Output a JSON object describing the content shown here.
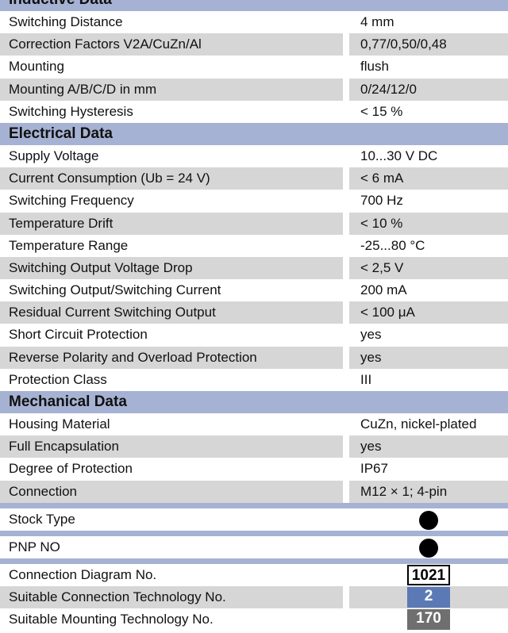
{
  "inductive": {
    "title": "Inductive Data",
    "rows": [
      {
        "label": "Switching Distance",
        "value": "4 mm"
      },
      {
        "label": "Correction Factors V2A/CuZn/Al",
        "value": "0,77/0,50/0,48"
      },
      {
        "label": "Mounting",
        "value": "flush"
      },
      {
        "label": "Mounting A/B/C/D in mm",
        "value": "0/24/12/0"
      },
      {
        "label": "Switching Hysteresis",
        "value": "< 15 %"
      }
    ]
  },
  "electrical": {
    "title": "Electrical Data",
    "rows": [
      {
        "label": "Supply Voltage",
        "value": "10...30 V DC"
      },
      {
        "label": "Current Consumption (Ub = 24 V)",
        "value": "< 6 mA"
      },
      {
        "label": "Switching Frequency",
        "value": "700 Hz"
      },
      {
        "label": "Temperature Drift",
        "value": "< 10 %"
      },
      {
        "label": "Temperature Range",
        "value": "-25...80 °C"
      },
      {
        "label": "Switching Output Voltage Drop",
        "value": "< 2,5 V"
      },
      {
        "label": "Switching Output/Switching Current",
        "value": "200 mA"
      },
      {
        "label": "Residual Current Switching Output",
        "value": "< 100 μA"
      },
      {
        "label": "Short Circuit Protection",
        "value": "yes"
      },
      {
        "label": "Reverse Polarity and Overload Protection",
        "value": "yes"
      },
      {
        "label": "Protection Class",
        "value": "III"
      }
    ]
  },
  "mechanical": {
    "title": "Mechanical Data",
    "rows": [
      {
        "label": "Housing Material",
        "value": "CuZn, nickel-plated"
      },
      {
        "label": "Full Encapsulation",
        "value": "yes"
      },
      {
        "label": "Degree of Protection",
        "value": "IP67"
      },
      {
        "label": "Connection",
        "value": "M12 × 1; 4-pin"
      }
    ]
  },
  "stock_type": {
    "label": "Stock Type",
    "value": "filled-dot-icon"
  },
  "pnp_no": {
    "label": "PNP NO",
    "value": "filled-dot-icon"
  },
  "connection_diagram": {
    "label": "Connection Diagram No.",
    "value": "1021"
  },
  "connection_technology": {
    "label": "Suitable Connection Technology No.",
    "value": "2",
    "color": "#5b7ab5"
  },
  "mounting_technology": {
    "label": "Suitable Mounting Technology No.",
    "value": "170",
    "color": "#6f6f6f"
  }
}
